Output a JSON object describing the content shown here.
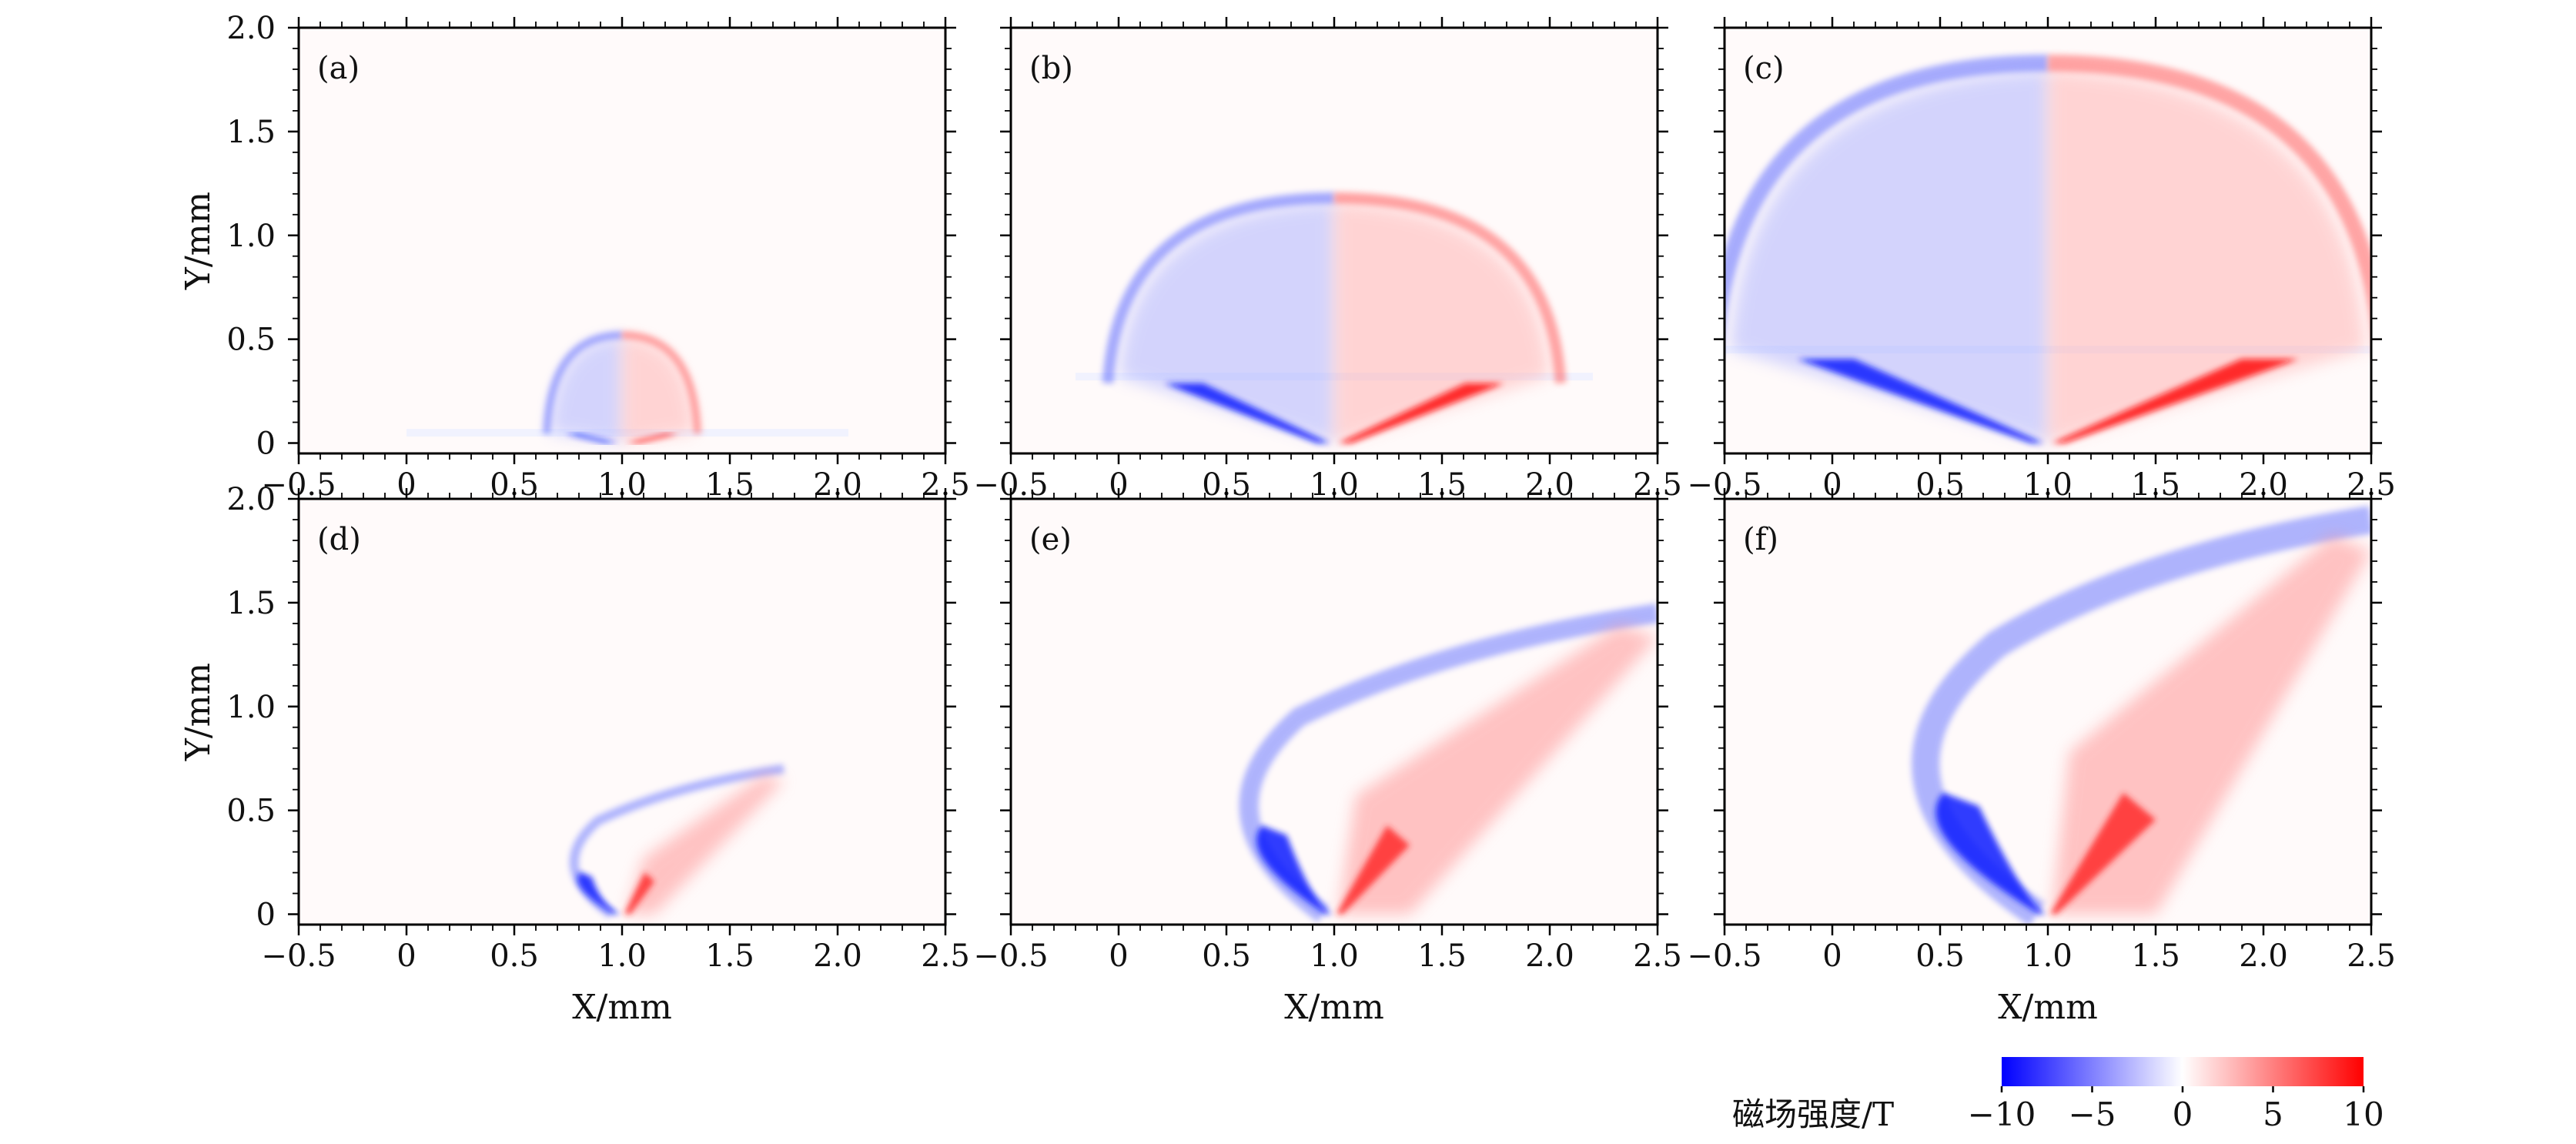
{
  "chart_data": [
    {
      "type": "heatmap",
      "panel_label": "(a)",
      "xlabel": "",
      "ylabel": "Y/mm",
      "xlim": [
        -0.5,
        2.5
      ],
      "ylim": [
        -0.05,
        2.0
      ],
      "xticks": [
        "−0.5",
        "0",
        "0.5",
        "1.0",
        "1.5",
        "2.0",
        "2.5"
      ],
      "yticks": [
        "0",
        "0.5",
        "1.0",
        "1.5",
        "2.0"
      ],
      "structure": {
        "type": "dome",
        "center_x": 1.0,
        "top_y": 0.52,
        "half_width": 0.35,
        "shelf_y": 0.05,
        "shelf_x": [
          0.0,
          2.05
        ]
      },
      "field_range_T": [
        -10,
        10
      ]
    },
    {
      "type": "heatmap",
      "panel_label": "(b)",
      "xlabel": "",
      "ylabel": "",
      "xlim": [
        -0.5,
        2.5
      ],
      "ylim": [
        -0.05,
        2.0
      ],
      "xticks": [
        "−0.5",
        "0",
        "0.5",
        "1.0",
        "1.5",
        "2.0",
        "2.5"
      ],
      "yticks": [
        "0",
        "0.5",
        "1.0",
        "1.5",
        "2.0"
      ],
      "structure": {
        "type": "dome",
        "center_x": 1.0,
        "top_y": 1.18,
        "half_width": 1.05,
        "shelf_y": 0.32,
        "shelf_x": [
          -0.2,
          2.2
        ]
      },
      "field_range_T": [
        -10,
        10
      ]
    },
    {
      "type": "heatmap",
      "panel_label": "(c)",
      "xlabel": "",
      "ylabel": "",
      "xlim": [
        -0.5,
        2.5
      ],
      "ylim": [
        -0.05,
        2.0
      ],
      "xticks": [
        "−0.5",
        "0",
        "0.5",
        "1.0",
        "1.5",
        "2.0",
        "2.5"
      ],
      "yticks": [
        "0",
        "0.5",
        "1.0",
        "1.5",
        "2.0"
      ],
      "structure": {
        "type": "dome",
        "center_x": 1.0,
        "top_y": 1.83,
        "half_width": 1.55,
        "shelf_y": 0.45,
        "shelf_x": [
          -0.5,
          2.5
        ]
      },
      "field_range_T": [
        -10,
        10
      ]
    },
    {
      "type": "heatmap",
      "panel_label": "(d)",
      "xlabel": "X/mm",
      "ylabel": "Y/mm",
      "xlim": [
        -0.5,
        2.5
      ],
      "ylim": [
        -0.05,
        2.0
      ],
      "xticks": [
        "−0.5",
        "0",
        "0.5",
        "1.0",
        "1.5",
        "2.0",
        "2.5"
      ],
      "yticks": [
        "0",
        "0.5",
        "1.0",
        "1.5",
        "2.0"
      ],
      "structure": {
        "type": "swept",
        "center_x": 1.0,
        "bulb_x": [
          0.75,
          1.3
        ],
        "bulb_top_y": 0.45,
        "tail_end": [
          1.75,
          0.7
        ]
      },
      "field_range_T": [
        -10,
        10
      ]
    },
    {
      "type": "heatmap",
      "panel_label": "(e)",
      "xlabel": "X/mm",
      "ylabel": "",
      "xlim": [
        -0.5,
        2.5
      ],
      "ylim": [
        -0.05,
        2.0
      ],
      "xticks": [
        "−0.5",
        "0",
        "0.5",
        "1.0",
        "1.5",
        "2.0",
        "2.5"
      ],
      "yticks": [
        "0",
        "0.5",
        "1.0",
        "1.5",
        "2.0"
      ],
      "structure": {
        "type": "swept",
        "center_x": 1.0,
        "bulb_x": [
          0.55,
          1.7
        ],
        "bulb_top_y": 0.95,
        "tail_end": [
          2.5,
          1.45
        ]
      },
      "field_range_T": [
        -10,
        10
      ]
    },
    {
      "type": "heatmap",
      "panel_label": "(f)",
      "xlabel": "X/mm",
      "ylabel": "",
      "xlim": [
        -0.5,
        2.5
      ],
      "ylim": [
        -0.05,
        2.0
      ],
      "xticks": [
        "−0.5",
        "0",
        "0.5",
        "1.0",
        "1.5",
        "2.0",
        "2.5"
      ],
      "yticks": [
        "0",
        "0.5",
        "1.0",
        "1.5",
        "2.0"
      ],
      "structure": {
        "type": "swept",
        "center_x": 1.0,
        "bulb_x": [
          0.35,
          2.0
        ],
        "bulb_top_y": 1.3,
        "tail_end": [
          2.5,
          1.9
        ]
      },
      "field_range_T": [
        -10,
        10
      ]
    }
  ],
  "colorbar": {
    "label": "磁场强度/T",
    "ticks": [
      "−10",
      "−5",
      "0",
      "5",
      "10"
    ],
    "range": [
      -10,
      10
    ],
    "colors": {
      "negative": "#0000ff",
      "zero": "#ffffff",
      "positive": "#ff0000"
    }
  }
}
